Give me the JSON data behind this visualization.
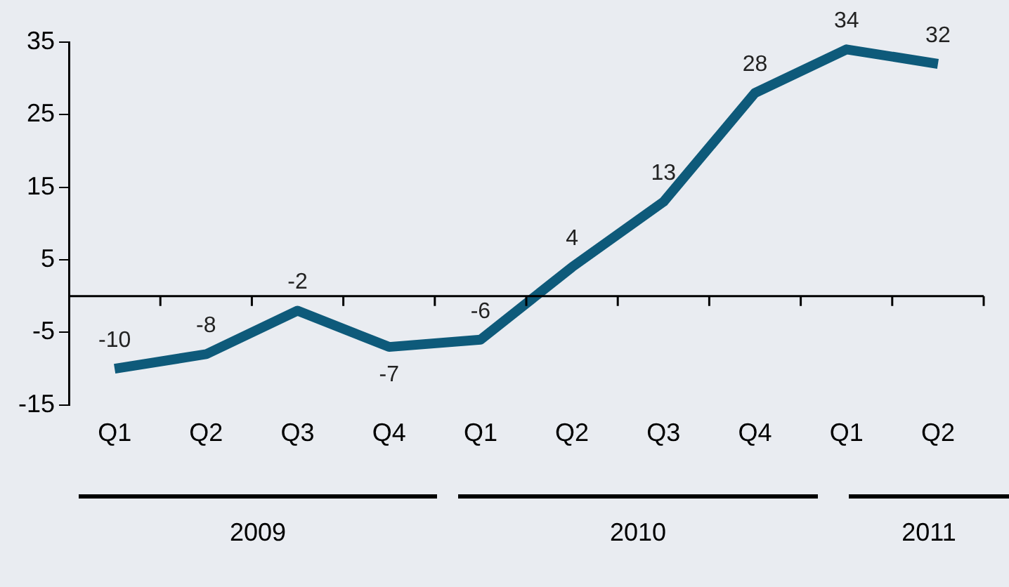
{
  "chart_data": {
    "type": "line",
    "categories": [
      "Q1",
      "Q2",
      "Q3",
      "Q4",
      "Q1",
      "Q2",
      "Q3",
      "Q4",
      "Q1",
      "Q2"
    ],
    "series": [
      {
        "color": "#0e5a7a",
        "values": [
          -10,
          -8,
          -2,
          -7,
          -6,
          4,
          13,
          28,
          34,
          32
        ]
      }
    ],
    "ylim": [
      -15,
      35
    ],
    "yticks": [
      -15,
      -5,
      5,
      15,
      25,
      35
    ],
    "data_labels": true,
    "grid": false,
    "legend": false,
    "marker": "none",
    "line_style": "solid",
    "annotations": [
      "2009",
      "2010",
      "2011"
    ]
  }
}
